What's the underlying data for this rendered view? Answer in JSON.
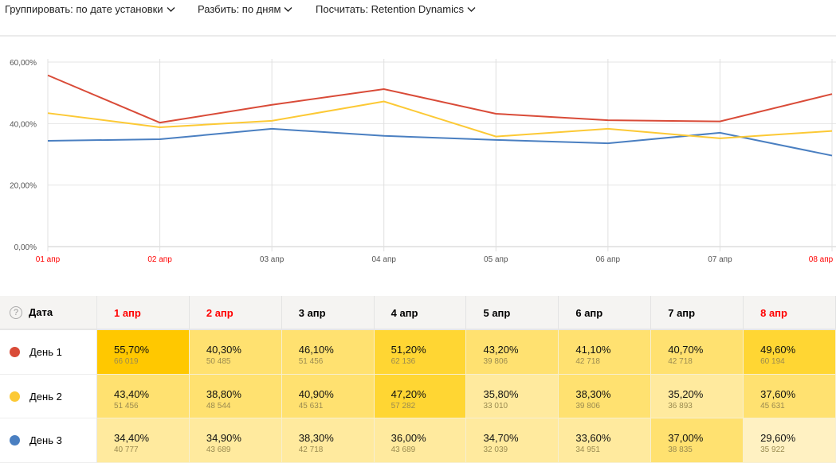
{
  "toolbar": {
    "group": "Группировать: по дате установки",
    "split": "Разбить: по дням",
    "count": "Посчитать: Retention Dynamics"
  },
  "chart_data": {
    "type": "line",
    "x": [
      "01 апр",
      "02 апр",
      "03 апр",
      "04 апр",
      "05 апр",
      "06 апр",
      "07 апр",
      "08 апр"
    ],
    "x_weekend": [
      true,
      true,
      false,
      false,
      false,
      false,
      false,
      true
    ],
    "yticks": [
      "0,00%",
      "20,00%",
      "40,00%",
      "60,00%"
    ],
    "ylim": [
      0,
      60
    ],
    "grid": true,
    "series": [
      {
        "name": "День 1",
        "color": "#d94b38",
        "values": [
          55.7,
          40.3,
          46.1,
          51.2,
          43.2,
          41.1,
          40.7,
          49.6
        ]
      },
      {
        "name": "День 2",
        "color": "#fcc935",
        "values": [
          43.4,
          38.8,
          40.9,
          47.2,
          35.8,
          38.3,
          35.2,
          37.6
        ]
      },
      {
        "name": "День 3",
        "color": "#4a7fc1",
        "values": [
          34.4,
          34.9,
          38.3,
          36.0,
          34.7,
          33.6,
          37.0,
          29.6
        ]
      }
    ]
  },
  "table": {
    "header": "Дата",
    "help": "?",
    "columns": [
      {
        "label": "1 апр",
        "weekend": true
      },
      {
        "label": "2 апр",
        "weekend": true
      },
      {
        "label": "3 апр",
        "weekend": false
      },
      {
        "label": "4 апр",
        "weekend": false
      },
      {
        "label": "5 апр",
        "weekend": false
      },
      {
        "label": "6 апр",
        "weekend": false
      },
      {
        "label": "7 апр",
        "weekend": false
      },
      {
        "label": "8 апр",
        "weekend": true
      }
    ],
    "rows": [
      {
        "label": "День 1",
        "color": "#d94b38",
        "cells": [
          [
            "55,70%",
            "66 019"
          ],
          [
            "40,30%",
            "50 485"
          ],
          [
            "46,10%",
            "51 456"
          ],
          [
            "51,20%",
            "62 136"
          ],
          [
            "43,20%",
            "39 806"
          ],
          [
            "41,10%",
            "42 718"
          ],
          [
            "40,70%",
            "42 718"
          ],
          [
            "49,60%",
            "60 194"
          ]
        ],
        "levels": [
          4,
          2,
          2,
          3,
          2,
          2,
          2,
          3
        ]
      },
      {
        "label": "День 2",
        "color": "#fcc935",
        "cells": [
          [
            "43,40%",
            "51 456"
          ],
          [
            "38,80%",
            "48 544"
          ],
          [
            "40,90%",
            "45 631"
          ],
          [
            "47,20%",
            "57 282"
          ],
          [
            "35,80%",
            "33 010"
          ],
          [
            "38,30%",
            "39 806"
          ],
          [
            "35,20%",
            "36 893"
          ],
          [
            "37,60%",
            "45 631"
          ]
        ],
        "levels": [
          2,
          2,
          2,
          3,
          1,
          2,
          1,
          2
        ]
      },
      {
        "label": "День 3",
        "color": "#4a7fc1",
        "cells": [
          [
            "34,40%",
            "40 777"
          ],
          [
            "34,90%",
            "43 689"
          ],
          [
            "38,30%",
            "42 718"
          ],
          [
            "36,00%",
            "43 689"
          ],
          [
            "34,70%",
            "32 039"
          ],
          [
            "33,60%",
            "34 951"
          ],
          [
            "37,00%",
            "38 835"
          ],
          [
            "29,60%",
            "35 922"
          ]
        ],
        "levels": [
          1,
          1,
          1,
          1,
          1,
          1,
          2,
          0
        ]
      }
    ],
    "level_colors": [
      "#fff1c2",
      "#ffea9e",
      "#ffe170",
      "#ffd633",
      "#ffc800"
    ],
    "weekend_color": "#ff0000"
  }
}
